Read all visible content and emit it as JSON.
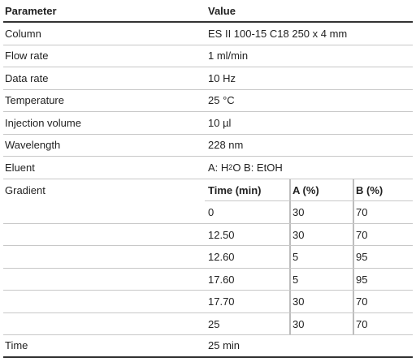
{
  "header": {
    "parameter": "Parameter",
    "value": "Value"
  },
  "rows": [
    {
      "param": "Column",
      "value": "ES II 100-15 C18 250 x 4 mm"
    },
    {
      "param": "Flow rate",
      "value": "1 ml/min"
    },
    {
      "param": "Data rate",
      "value": "10 Hz"
    },
    {
      "param": "Temperature",
      "value": "25 °C"
    },
    {
      "param": "Injection volume",
      "value": "10 µl"
    },
    {
      "param": "Wavelength",
      "value": "228 nm"
    }
  ],
  "eluent": {
    "param": "Eluent",
    "a_prefix": "A: H",
    "a_sub": "2",
    "a_suffix": "O B: EtOH"
  },
  "gradient": {
    "param": "Gradient",
    "headers": {
      "time": "Time (min)",
      "a": "A (%)",
      "b": "B (%)"
    },
    "steps": [
      {
        "time": "0",
        "a": "30",
        "b": "70"
      },
      {
        "time": "12.50",
        "a": "30",
        "b": "70"
      },
      {
        "time": "12.60",
        "a": "5",
        "b": "95"
      },
      {
        "time": "17.60",
        "a": "5",
        "b": "95"
      },
      {
        "time": "17.70",
        "a": "30",
        "b": "70"
      },
      {
        "time": "25",
        "a": "30",
        "b": "70"
      }
    ]
  },
  "time": {
    "param": "Time",
    "value": "25 min"
  }
}
